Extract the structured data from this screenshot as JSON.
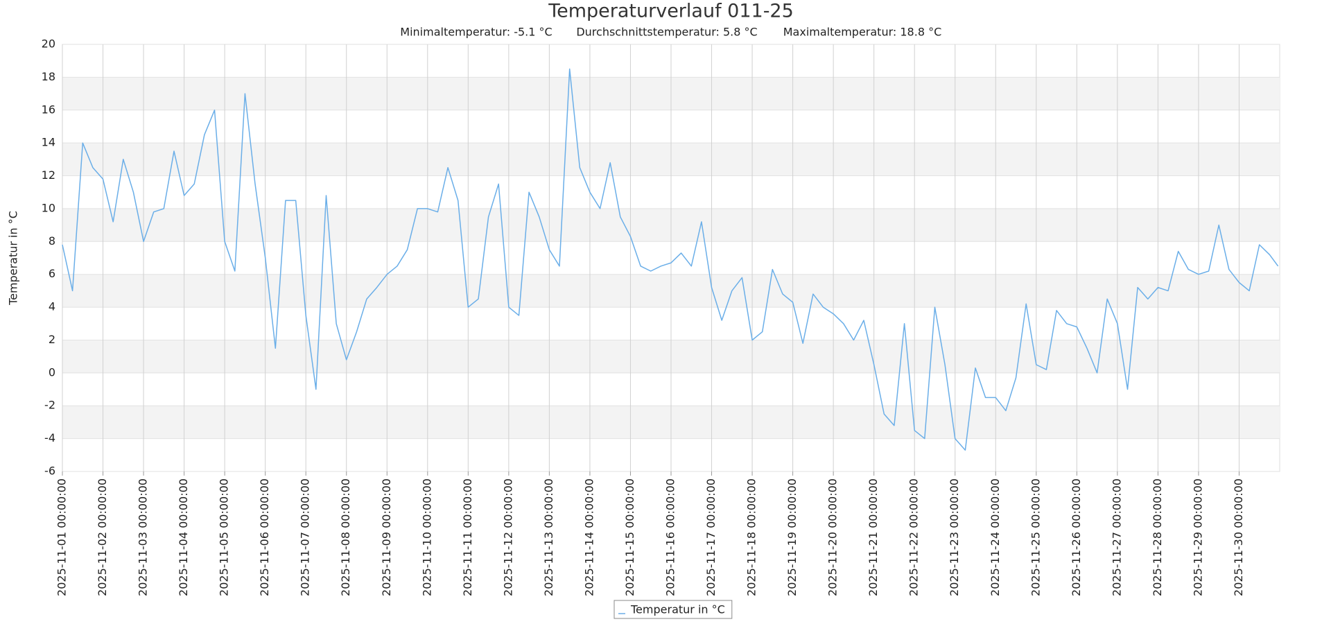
{
  "chart_data": {
    "type": "line",
    "title": "Temperaturverlauf 011-25",
    "subtitle": [
      "Minimaltemperatur: -5.1 °C",
      "Durchschnittstemperatur: 5.8 °C",
      "Maximaltemperatur: 18.8 °C"
    ],
    "y_label": "Temperatur in °C",
    "x": [
      "2025-11-01 00:00:00",
      "2025-11-01 06:00:00",
      "2025-11-01 12:00:00",
      "2025-11-01 18:00:00",
      "2025-11-02 00:00:00",
      "2025-11-02 06:00:00",
      "2025-11-02 12:00:00",
      "2025-11-02 18:00:00",
      "2025-11-03 00:00:00",
      "2025-11-03 06:00:00",
      "2025-11-03 12:00:00",
      "2025-11-03 18:00:00",
      "2025-11-04 00:00:00",
      "2025-11-04 06:00:00",
      "2025-11-04 12:00:00",
      "2025-11-04 18:00:00",
      "2025-11-05 00:00:00",
      "2025-11-05 06:00:00",
      "2025-11-05 12:00:00",
      "2025-11-05 18:00:00",
      "2025-11-06 00:00:00",
      "2025-11-06 06:00:00",
      "2025-11-06 12:00:00",
      "2025-11-06 18:00:00",
      "2025-11-07 00:00:00",
      "2025-11-07 06:00:00",
      "2025-11-07 12:00:00",
      "2025-11-07 18:00:00",
      "2025-11-08 00:00:00",
      "2025-11-08 06:00:00",
      "2025-11-08 12:00:00",
      "2025-11-08 18:00:00",
      "2025-11-09 00:00:00",
      "2025-11-09 06:00:00",
      "2025-11-09 12:00:00",
      "2025-11-09 18:00:00",
      "2025-11-10 00:00:00",
      "2025-11-10 06:00:00",
      "2025-11-10 12:00:00",
      "2025-11-10 18:00:00",
      "2025-11-11 00:00:00",
      "2025-11-11 06:00:00",
      "2025-11-11 12:00:00",
      "2025-11-11 18:00:00",
      "2025-11-12 00:00:00",
      "2025-11-12 06:00:00",
      "2025-11-12 12:00:00",
      "2025-11-12 18:00:00",
      "2025-11-13 00:00:00",
      "2025-11-13 06:00:00",
      "2025-11-13 12:00:00",
      "2025-11-13 18:00:00",
      "2025-11-14 00:00:00",
      "2025-11-14 06:00:00",
      "2025-11-14 12:00:00",
      "2025-11-14 18:00:00",
      "2025-11-15 00:00:00",
      "2025-11-15 06:00:00",
      "2025-11-15 12:00:00",
      "2025-11-15 18:00:00",
      "2025-11-16 00:00:00",
      "2025-11-16 06:00:00",
      "2025-11-16 12:00:00",
      "2025-11-16 18:00:00",
      "2025-11-17 00:00:00",
      "2025-11-17 06:00:00",
      "2025-11-17 12:00:00",
      "2025-11-17 18:00:00",
      "2025-11-18 00:00:00",
      "2025-11-18 06:00:00",
      "2025-11-18 12:00:00",
      "2025-11-18 18:00:00",
      "2025-11-19 00:00:00",
      "2025-11-19 06:00:00",
      "2025-11-19 12:00:00",
      "2025-11-19 18:00:00",
      "2025-11-20 00:00:00",
      "2025-11-20 06:00:00",
      "2025-11-20 12:00:00",
      "2025-11-20 18:00:00",
      "2025-11-21 00:00:00",
      "2025-11-21 06:00:00",
      "2025-11-21 12:00:00",
      "2025-11-21 18:00:00",
      "2025-11-22 00:00:00",
      "2025-11-22 06:00:00",
      "2025-11-22 12:00:00",
      "2025-11-22 18:00:00",
      "2025-11-23 00:00:00",
      "2025-11-23 06:00:00",
      "2025-11-23 12:00:00",
      "2025-11-23 18:00:00",
      "2025-11-24 00:00:00",
      "2025-11-24 06:00:00",
      "2025-11-24 12:00:00",
      "2025-11-24 18:00:00",
      "2025-11-25 00:00:00",
      "2025-11-25 06:00:00",
      "2025-11-25 12:00:00",
      "2025-11-25 18:00:00",
      "2025-11-26 00:00:00",
      "2025-11-26 06:00:00",
      "2025-11-26 12:00:00",
      "2025-11-26 18:00:00",
      "2025-11-27 00:00:00",
      "2025-11-27 06:00:00",
      "2025-11-27 12:00:00",
      "2025-11-27 18:00:00",
      "2025-11-28 00:00:00",
      "2025-11-28 06:00:00",
      "2025-11-28 12:00:00",
      "2025-11-28 18:00:00",
      "2025-11-29 00:00:00",
      "2025-11-29 06:00:00",
      "2025-11-29 12:00:00",
      "2025-11-29 18:00:00",
      "2025-11-30 00:00:00",
      "2025-11-30 06:00:00",
      "2025-11-30 12:00:00",
      "2025-11-30 18:00:00",
      "2025-11-30 23:00:00"
    ],
    "series": [
      {
        "name": "Temperatur in °C",
        "color": "#6aaee8",
        "values": [
          7.8,
          5.0,
          14.0,
          12.5,
          11.8,
          9.2,
          13.0,
          11.0,
          8.0,
          9.8,
          10.0,
          13.5,
          10.8,
          11.5,
          14.5,
          16.0,
          8.0,
          6.2,
          17.0,
          11.5,
          7.0,
          1.5,
          10.5,
          10.5,
          3.5,
          -1.0,
          10.8,
          3.0,
          0.8,
          2.5,
          4.5,
          5.2,
          6.0,
          6.5,
          7.5,
          10.0,
          10.0,
          9.8,
          12.5,
          10.5,
          4.0,
          4.5,
          9.5,
          11.5,
          4.0,
          3.5,
          11.0,
          9.5,
          7.5,
          6.5,
          18.5,
          12.5,
          11.0,
          10.0,
          12.8,
          9.5,
          8.3,
          6.5,
          6.2,
          6.5,
          6.7,
          7.3,
          6.5,
          9.2,
          5.2,
          3.2,
          5.0,
          5.8,
          2.0,
          2.5,
          6.3,
          4.8,
          4.3,
          1.8,
          4.8,
          4.0,
          3.6,
          3.0,
          2.0,
          3.2,
          0.5,
          -2.5,
          -3.2,
          3.0,
          -3.5,
          -4.0,
          4.0,
          0.5,
          -4.0,
          -4.7,
          0.3,
          -1.5,
          -1.5,
          -2.3,
          -0.3,
          4.2,
          0.5,
          0.2,
          3.8,
          3.0,
          2.8,
          1.5,
          0.0,
          4.5,
          3.0,
          -1.0,
          5.2,
          4.5,
          5.2,
          5.0,
          7.4,
          6.3,
          6.0,
          6.2,
          9.0,
          6.3,
          5.5,
          5.0,
          7.8,
          7.2,
          6.5
        ]
      }
    ],
    "xlim": [
      "2025-11-01 00:00:00",
      "2025-12-01 00:00:00"
    ],
    "xticks": [
      "2025-11-01 00:00:00",
      "2025-11-02 00:00:00",
      "2025-11-03 00:00:00",
      "2025-11-04 00:00:00",
      "2025-11-05 00:00:00",
      "2025-11-06 00:00:00",
      "2025-11-07 00:00:00",
      "2025-11-08 00:00:00",
      "2025-11-09 00:00:00",
      "2025-11-10 00:00:00",
      "2025-11-11 00:00:00",
      "2025-11-12 00:00:00",
      "2025-11-13 00:00:00",
      "2025-11-14 00:00:00",
      "2025-11-15 00:00:00",
      "2025-11-16 00:00:00",
      "2025-11-17 00:00:00",
      "2025-11-18 00:00:00",
      "2025-11-19 00:00:00",
      "2025-11-20 00:00:00",
      "2025-11-21 00:00:00",
      "2025-11-22 00:00:00",
      "2025-11-23 00:00:00",
      "2025-11-24 00:00:00",
      "2025-11-25 00:00:00",
      "2025-11-26 00:00:00",
      "2025-11-27 00:00:00",
      "2025-11-28 00:00:00",
      "2025-11-29 00:00:00",
      "2025-11-30 00:00:00"
    ],
    "ylim": [
      -6,
      20
    ],
    "yticks": [
      -6,
      -4,
      -2,
      0,
      2,
      4,
      6,
      8,
      10,
      12,
      14,
      16,
      18,
      20
    ],
    "grid": true,
    "alternate_bands": true,
    "legend": "bottom"
  }
}
